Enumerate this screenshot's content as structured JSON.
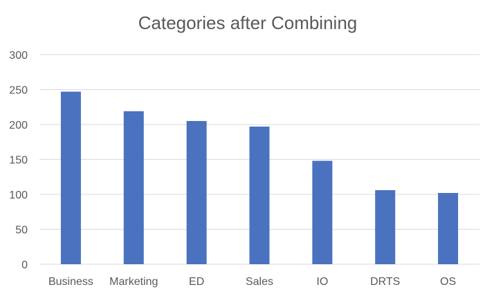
{
  "chart_data": {
    "type": "bar",
    "title": "Categories after Combining",
    "xlabel": "",
    "ylabel": "",
    "categories": [
      "Business",
      "Marketing",
      "ED",
      "Sales",
      "IO",
      "DRTS",
      "OS"
    ],
    "values": [
      247,
      219,
      205,
      197,
      148,
      106,
      102
    ],
    "ylim": [
      0,
      300
    ],
    "yticks": [
      0,
      50,
      100,
      150,
      200,
      250,
      300
    ],
    "grid": true,
    "legend": "none",
    "colors": {
      "bar": "#4A72BF",
      "grid": "#D9D9D9",
      "text": "#595959"
    }
  }
}
